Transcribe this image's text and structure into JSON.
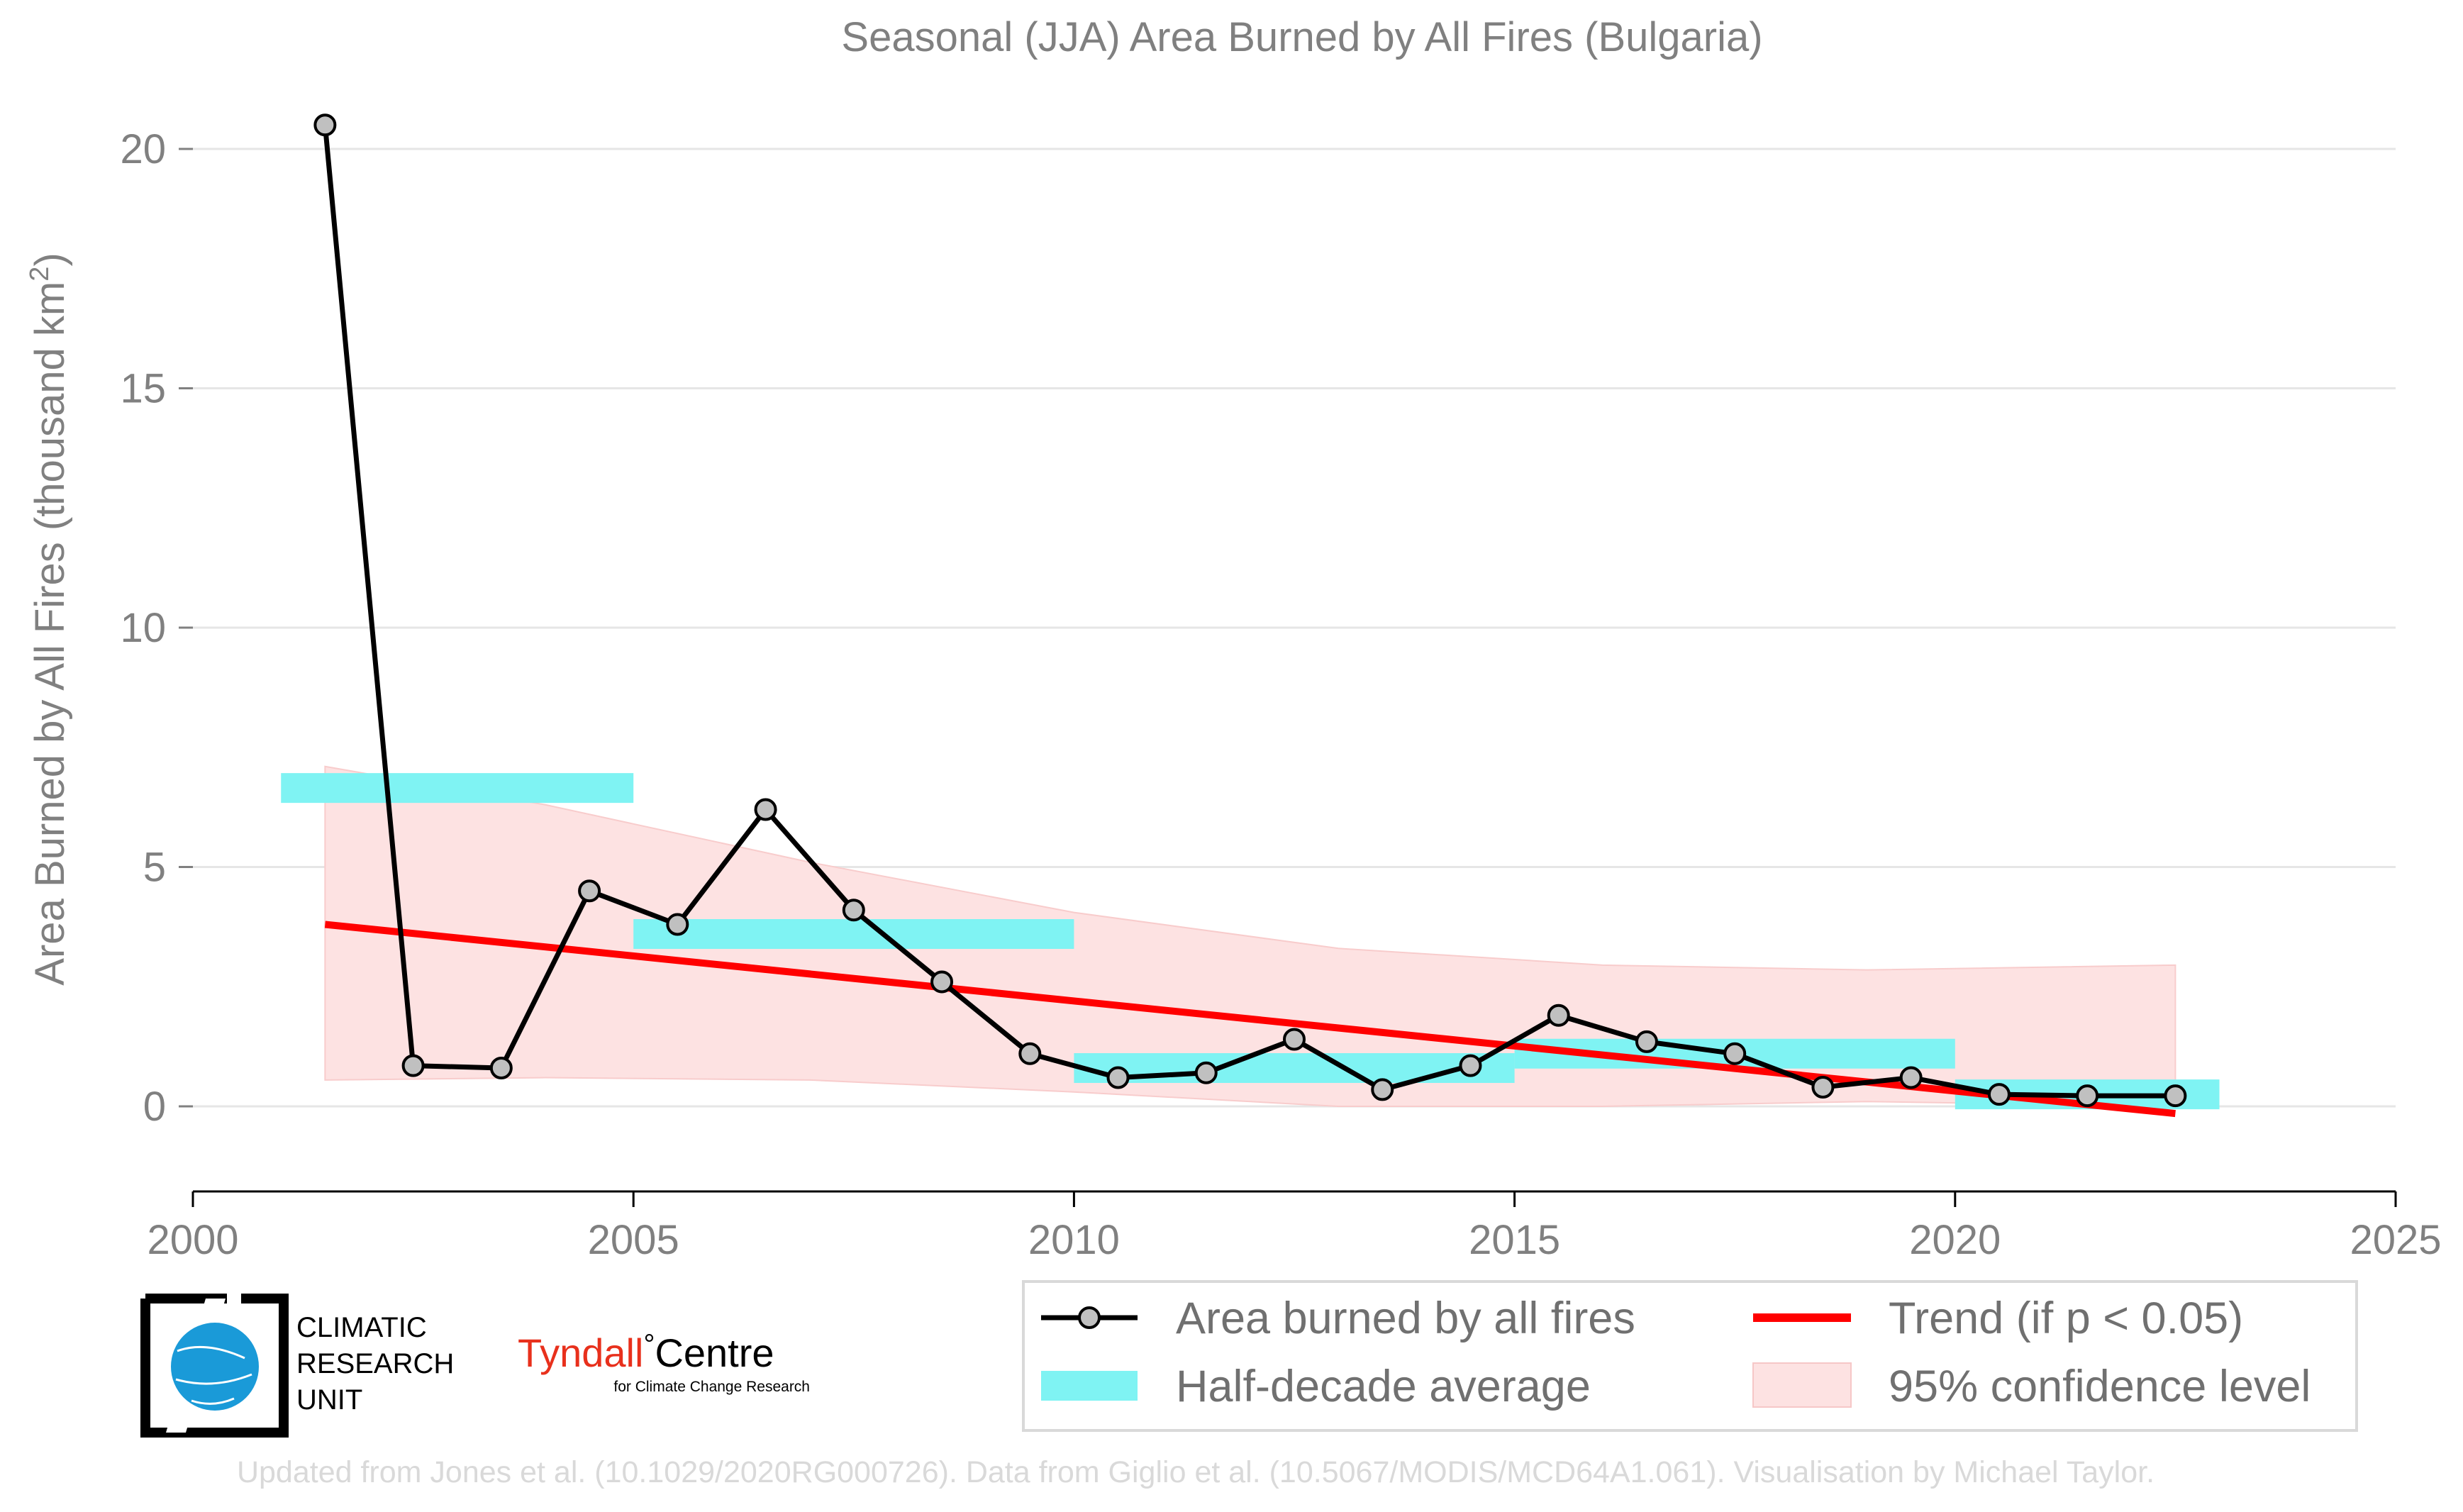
{
  "chart_data": {
    "type": "line",
    "title": "Seasonal (JJA) Area Burned by All Fires (Bulgaria)",
    "ylabel": "Area Burned by All Fires (thousand km",
    "ylabel_sup": "2",
    "ylabel_end": ")",
    "xlabel": "",
    "xlim": [
      2000,
      2025
    ],
    "ylim": [
      -1.8,
      21
    ],
    "x_ticks": [
      2000,
      2005,
      2010,
      2015,
      2020,
      2025
    ],
    "y_ticks": [
      0,
      5,
      10,
      15,
      20
    ],
    "grid": "horizontal",
    "legend_position": "bottom-right, below plot",
    "series": [
      {
        "name": "Area burned by all fires",
        "color": "#000000",
        "marker": "circle",
        "marker_fill": "#c0c0c0",
        "x": [
          2001.5,
          2002.5,
          2003.5,
          2004.5,
          2005.5,
          2006.5,
          2007.5,
          2008.5,
          2009.5,
          2010.5,
          2011.5,
          2012.5,
          2013.5,
          2014.5,
          2015.5,
          2016.5,
          2017.5,
          2018.5,
          2019.5,
          2020.5,
          2021.5,
          2022.5
        ],
        "values": [
          20.5,
          0.85,
          0.8,
          4.5,
          3.8,
          6.2,
          4.1,
          2.6,
          1.1,
          0.6,
          0.7,
          1.4,
          0.35,
          0.85,
          1.9,
          1.35,
          1.1,
          0.4,
          0.6,
          0.25,
          0.22,
          0.22
        ]
      }
    ],
    "half_decade_average": {
      "name": "Half-decade average",
      "color": "#7ff3f3",
      "segments": [
        {
          "x0": 2001,
          "x1": 2005,
          "value": 6.65
        },
        {
          "x0": 2005,
          "x1": 2010,
          "value": 3.6
        },
        {
          "x0": 2010,
          "x1": 2015,
          "value": 0.8
        },
        {
          "x0": 2015,
          "x1": 2020,
          "value": 1.1
        },
        {
          "x0": 2020,
          "x1": 2023,
          "value": 0.25
        }
      ]
    },
    "trend": {
      "name": "Trend (if p < 0.05)",
      "color": "#ff0000",
      "x": [
        2001.5,
        2022.5
      ],
      "values": [
        3.8,
        -0.15
      ]
    },
    "confidence_band": {
      "name": "95% confidence level",
      "color": "#fde2e2",
      "x": [
        2001.5,
        2004,
        2007,
        2010,
        2013,
        2016,
        2019,
        2022.5
      ],
      "upper": [
        7.1,
        6.3,
        5.1,
        4.05,
        3.3,
        2.95,
        2.85,
        2.95
      ],
      "lower": [
        0.55,
        0.6,
        0.55,
        0.3,
        0.0,
        0.0,
        0.1,
        0.0
      ]
    }
  },
  "legend": {
    "items": [
      {
        "label": "Area burned by all fires"
      },
      {
        "label": "Trend (if p < 0.05)"
      },
      {
        "label": "Half-decade average"
      },
      {
        "label": "95% confidence level"
      }
    ]
  },
  "logos": {
    "cru": {
      "line1": "CLIMATIC",
      "line2": "RESEARCH",
      "line3": "UNIT"
    },
    "tyndall": {
      "part1": "Tyndall",
      "degree": "°",
      "part2": "Centre",
      "sub": "for Climate Change Research",
      "color_red": "#e8301c"
    }
  },
  "credit": "Updated from Jones et al. (10.1029/2020RG000726). Data from Giglio et al. (10.5067/MODIS/MCD64A1.061). Visualisation by Michael Taylor."
}
